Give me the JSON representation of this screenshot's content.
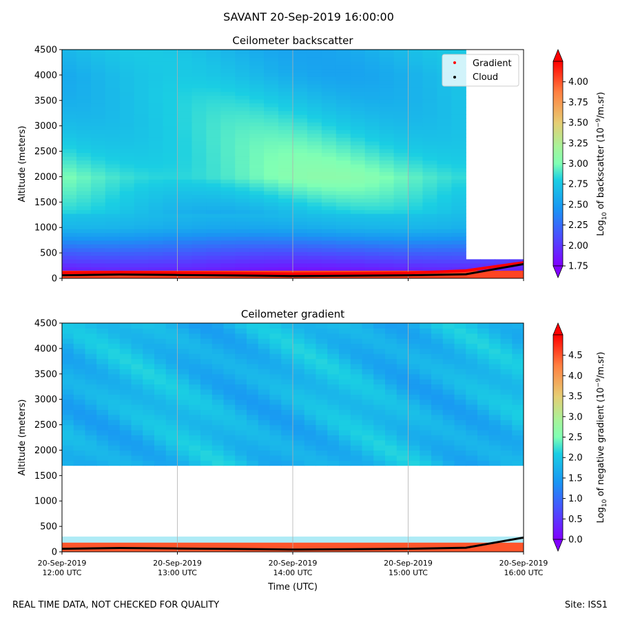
{
  "suptitle": "SAVANT 20-Sep-2019 16:00:00",
  "footer": {
    "left": "REAL TIME DATA, NOT CHECKED FOR QUALITY",
    "right": "Site: ISS1"
  },
  "chart_data": [
    {
      "type": "heatmap",
      "title": "Ceilometer backscatter",
      "ylabel": "Altitude (meters)",
      "xlabel": "",
      "ylim": [
        0,
        4500
      ],
      "yticks": [
        0,
        500,
        1000,
        1500,
        2000,
        2500,
        3000,
        3500,
        4000,
        4500
      ],
      "xlim": [
        "2019-09-20 12:00",
        "2019-09-20 16:00"
      ],
      "grid": "vertical at hourly ticks",
      "legend": {
        "placement": "top-right",
        "entries": [
          {
            "label": "Gradient",
            "color": "#ff0000",
            "marker": "dot"
          },
          {
            "label": "Cloud",
            "color": "#000000",
            "marker": "dot"
          }
        ]
      },
      "colorbar": {
        "label": "Log10 of backscatter (10^-9/m.sr)",
        "label_parts": {
          "base": "Log",
          "sub": "10",
          "mid": " of backscatter (10",
          "sup": "−9",
          "end": "/m.sr)"
        },
        "range": [
          1.75,
          4.25
        ],
        "ticks": [
          "1.75",
          "2.00",
          "2.25",
          "2.50",
          "2.75",
          "3.00",
          "3.25",
          "3.50",
          "3.75",
          "4.00"
        ],
        "colormap": "rainbow",
        "extend": "both"
      },
      "field_description": {
        "clear_sky_after": "2019-09-20 15:30",
        "surface_layer_top_m": 150,
        "levels": [
          {
            "alt": 4000,
            "v": 2.65
          },
          {
            "alt": 3000,
            "v": 2.8
          },
          {
            "alt": 2000,
            "v": 2.95
          },
          {
            "alt": 1000,
            "v": 2.6
          },
          {
            "alt": 500,
            "v": 2.15
          },
          {
            "alt": 200,
            "v": 1.9
          }
        ]
      },
      "series": [
        {
          "name": "Cloud",
          "color": "#000000",
          "x": [
            "12:00",
            "12:30",
            "13:00",
            "13:30",
            "14:00",
            "14:30",
            "15:00",
            "15:30",
            "15:45",
            "16:00"
          ],
          "y": [
            60,
            75,
            65,
            55,
            45,
            50,
            60,
            80,
            180,
            280
          ]
        },
        {
          "name": "Gradient",
          "color": "#ff0000",
          "x": [
            "12:00",
            "12:30",
            "13:00",
            "13:30",
            "14:00",
            "14:30",
            "15:00",
            "15:30",
            "15:45",
            "16:00"
          ],
          "y": [
            110,
            120,
            110,
            100,
            90,
            95,
            105,
            150,
            230,
            310
          ]
        }
      ]
    },
    {
      "type": "heatmap",
      "title": "Ceilometer gradient",
      "ylabel": "Altitude (meters)",
      "xlabel": "Time (UTC)",
      "ylim": [
        0,
        4500
      ],
      "yticks": [
        0,
        500,
        1000,
        1500,
        2000,
        2500,
        3000,
        3500,
        4000,
        4500
      ],
      "xticks": [
        {
          "date": "20-Sep-2019",
          "time": "12:00 UTC"
        },
        {
          "date": "20-Sep-2019",
          "time": "13:00 UTC"
        },
        {
          "date": "20-Sep-2019",
          "time": "14:00 UTC"
        },
        {
          "date": "20-Sep-2019",
          "time": "15:00 UTC"
        },
        {
          "date": "20-Sep-2019",
          "time": "16:00 UTC"
        }
      ],
      "grid": "vertical at hourly ticks",
      "colorbar": {
        "label": "Log10 of negative gradient (10^-9/m.sr)",
        "label_parts": {
          "base": "Log",
          "sub": "10",
          "mid": " of negative gradient (10",
          "sup": "−9",
          "end": "/m.sr)"
        },
        "range": [
          0.0,
          5.0
        ],
        "ticks": [
          "0.0",
          "0.5",
          "1.0",
          "1.5",
          "2.0",
          "2.5",
          "3.0",
          "3.5",
          "4.0",
          "4.5"
        ],
        "colormap": "rainbow",
        "extend": "both"
      },
      "field_description": {
        "upper_layer_alt_m": [
          1700,
          4500
        ],
        "upper_layer_value": 1.8,
        "gap_alt_m": [
          300,
          1700
        ],
        "surface_band_value": 4.5
      },
      "series": [
        {
          "name": "Cloud",
          "color": "#000000",
          "x": [
            "12:00",
            "12:30",
            "13:00",
            "13:30",
            "14:00",
            "14:30",
            "15:00",
            "15:30",
            "15:45",
            "16:00"
          ],
          "y": [
            60,
            75,
            65,
            55,
            45,
            50,
            60,
            80,
            180,
            280
          ]
        }
      ]
    }
  ]
}
